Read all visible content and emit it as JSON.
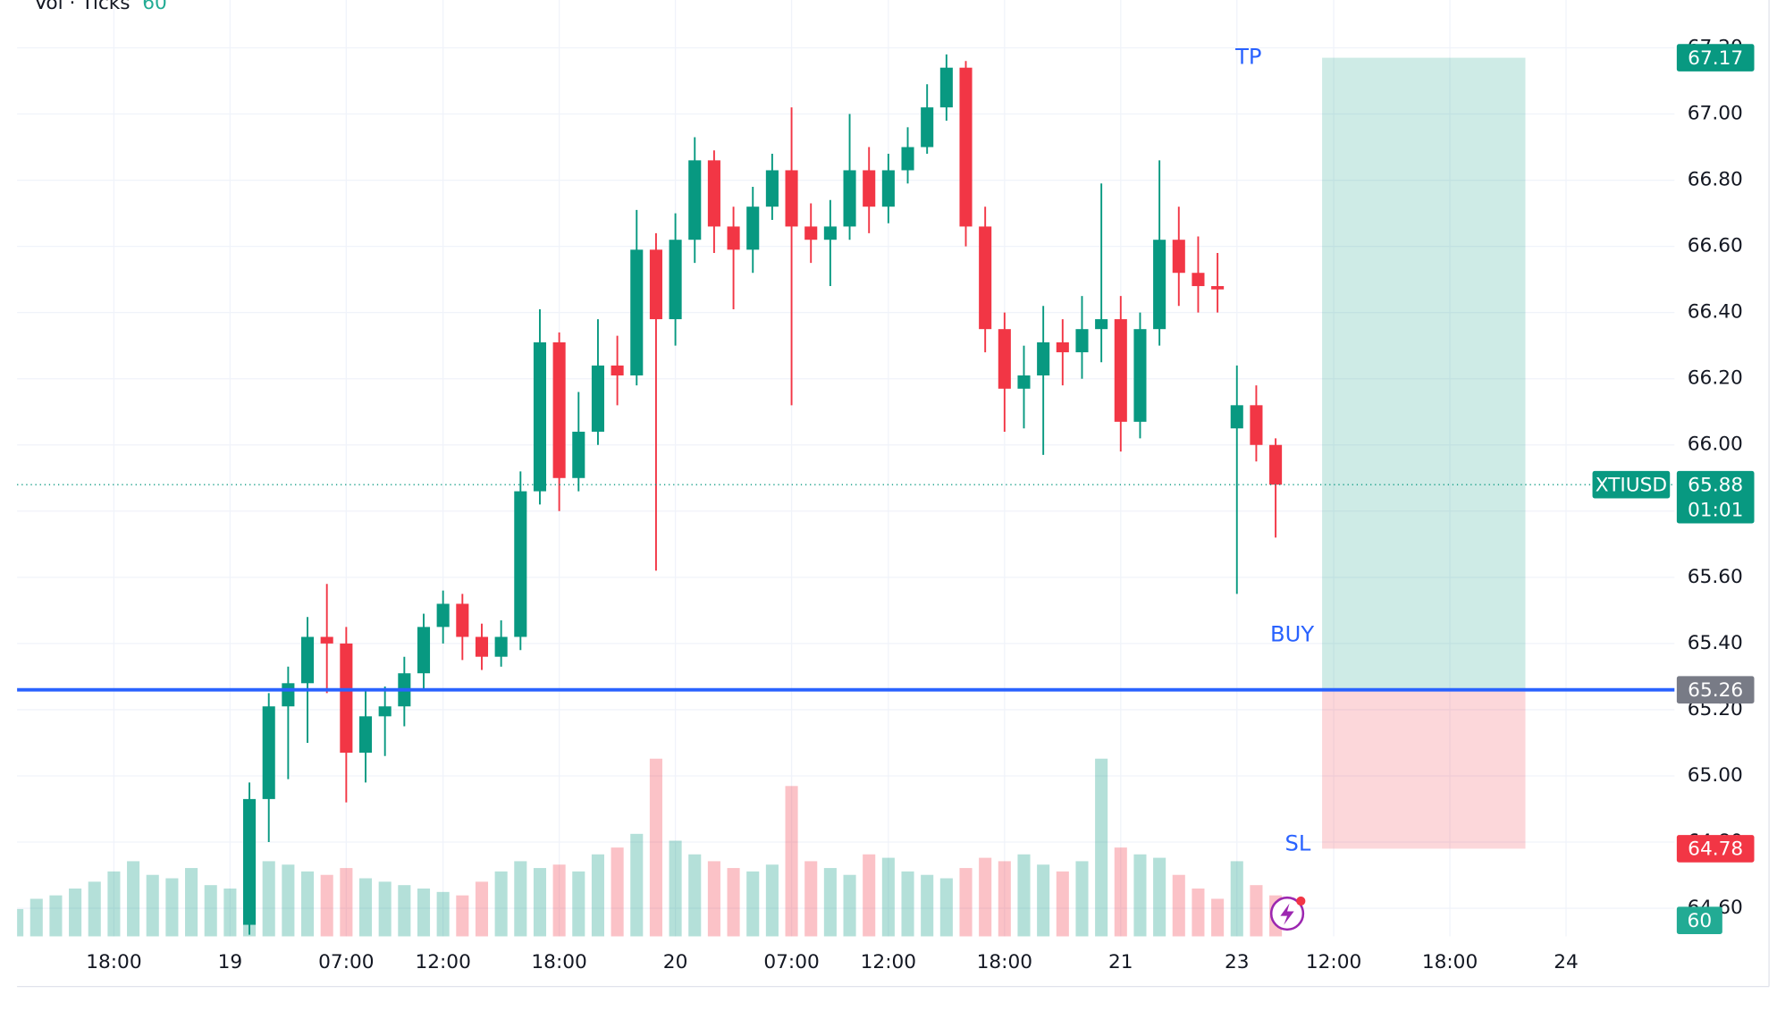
{
  "chart_data": {
    "type": "candlestick",
    "title": "Vol · Ticks",
    "symbol": "XTIUSD",
    "last_price": 65.88,
    "countdown": "01:01",
    "up_color": "#089981",
    "down_color": "#f23645",
    "grid": true,
    "x": [
      0,
      1,
      2,
      3,
      4,
      5,
      6,
      7,
      8,
      9,
      10,
      11,
      12,
      13,
      14,
      15,
      16,
      17,
      18,
      19,
      20,
      21,
      22,
      23,
      24,
      25,
      26,
      27,
      28,
      29,
      30,
      31,
      32,
      33,
      34,
      35,
      36,
      37,
      38,
      39,
      40,
      41,
      42,
      43,
      44,
      45,
      46,
      47,
      48,
      49,
      50,
      51,
      52,
      53,
      54,
      55,
      56,
      57,
      58,
      59,
      60,
      61,
      62,
      63,
      64,
      65
    ],
    "open": [
      null,
      null,
      null,
      null,
      null,
      null,
      null,
      null,
      null,
      null,
      null,
      null,
      64.55,
      64.93,
      65.21,
      65.28,
      65.42,
      65.4,
      65.07,
      65.18,
      65.21,
      65.31,
      65.45,
      65.52,
      65.42,
      65.36,
      65.42,
      65.86,
      66.31,
      65.9,
      66.04,
      66.24,
      66.21,
      66.59,
      66.38,
      66.62,
      66.86,
      66.66,
      66.59,
      66.72,
      66.83,
      66.66,
      66.62,
      66.66,
      66.83,
      66.72,
      66.83,
      66.9,
      67.02,
      67.14,
      66.66,
      66.35,
      66.17,
      66.21,
      66.31,
      66.28,
      66.35,
      66.38,
      66.07,
      66.35,
      66.62,
      66.52,
      66.48,
      66.05,
      66.12,
      66.0
    ],
    "high": [
      null,
      null,
      null,
      null,
      null,
      null,
      null,
      null,
      null,
      null,
      null,
      null,
      64.98,
      65.25,
      65.33,
      65.48,
      65.58,
      65.45,
      65.26,
      65.27,
      65.36,
      65.49,
      65.56,
      65.55,
      65.46,
      65.47,
      65.92,
      66.41,
      66.34,
      66.16,
      66.38,
      66.33,
      66.71,
      66.64,
      66.7,
      66.93,
      66.89,
      66.72,
      66.78,
      66.88,
      67.02,
      66.73,
      66.74,
      67.0,
      66.9,
      66.88,
      66.96,
      67.09,
      67.18,
      67.16,
      66.72,
      66.4,
      66.3,
      66.42,
      66.38,
      66.45,
      66.79,
      66.45,
      66.4,
      66.86,
      66.72,
      66.63,
      66.58,
      66.24,
      66.18,
      66.02
    ],
    "low": [
      null,
      null,
      null,
      null,
      null,
      null,
      null,
      null,
      null,
      null,
      null,
      null,
      64.52,
      64.8,
      64.99,
      65.1,
      65.25,
      64.92,
      64.98,
      65.06,
      65.15,
      65.26,
      65.4,
      65.35,
      65.32,
      65.33,
      65.38,
      65.82,
      65.8,
      65.86,
      66.0,
      66.12,
      66.18,
      65.62,
      66.3,
      66.55,
      66.58,
      66.41,
      66.52,
      66.68,
      66.12,
      66.55,
      66.48,
      66.62,
      66.64,
      66.67,
      66.79,
      66.88,
      66.98,
      66.6,
      66.28,
      66.04,
      66.05,
      65.97,
      66.18,
      66.2,
      66.25,
      65.98,
      66.02,
      66.3,
      66.42,
      66.4,
      66.4,
      65.55,
      65.95,
      65.72
    ],
    "close": [
      null,
      null,
      null,
      null,
      null,
      null,
      null,
      null,
      null,
      null,
      null,
      null,
      64.93,
      65.21,
      65.28,
      65.42,
      65.4,
      65.07,
      65.18,
      65.21,
      65.31,
      65.45,
      65.52,
      65.42,
      65.36,
      65.42,
      65.86,
      66.31,
      65.9,
      66.04,
      66.24,
      66.21,
      66.59,
      66.38,
      66.62,
      66.86,
      66.66,
      66.59,
      66.72,
      66.83,
      66.66,
      66.62,
      66.66,
      66.83,
      66.72,
      66.83,
      66.9,
      67.02,
      67.14,
      66.66,
      66.35,
      66.17,
      66.21,
      66.31,
      66.28,
      66.35,
      66.38,
      66.07,
      66.35,
      66.62,
      66.52,
      66.48,
      66.47,
      66.12,
      66.0,
      65.88
    ],
    "volume": [
      40,
      55,
      60,
      70,
      80,
      95,
      110,
      90,
      85,
      100,
      75,
      70,
      120,
      110,
      105,
      95,
      90,
      100,
      85,
      80,
      75,
      70,
      65,
      60,
      80,
      95,
      110,
      100,
      105,
      95,
      120,
      130,
      150,
      260,
      140,
      120,
      110,
      100,
      95,
      105,
      220,
      110,
      100,
      90,
      120,
      115,
      95,
      90,
      85,
      100,
      115,
      110,
      120,
      105,
      95,
      110,
      260,
      130,
      120,
      115,
      90,
      70,
      55,
      110,
      75,
      60
    ],
    "xlim": [
      0,
      85.6
    ],
    "xticks": [
      {
        "value": 5,
        "label": "18:00"
      },
      {
        "value": 11,
        "label": "19"
      },
      {
        "value": 17,
        "label": "07:00"
      },
      {
        "value": 22,
        "label": "12:00"
      },
      {
        "value": 28,
        "label": "18:00"
      },
      {
        "value": 34,
        "label": "20"
      },
      {
        "value": 40,
        "label": "07:00"
      },
      {
        "value": 45,
        "label": "12:00"
      },
      {
        "value": 51,
        "label": "18:00"
      },
      {
        "value": 57,
        "label": "21"
      },
      {
        "value": 63,
        "label": "23"
      },
      {
        "value": 68,
        "label": "12:00"
      },
      {
        "value": 74,
        "label": "18:00"
      },
      {
        "value": 80,
        "label": "24"
      }
    ],
    "ylim": [
      64.515,
      67.224
    ],
    "yticks": [
      {
        "value": 64.6,
        "label": "64.60"
      },
      {
        "value": 64.8,
        "label": "64.80"
      },
      {
        "value": 65,
        "label": "65.00"
      },
      {
        "value": 65.2,
        "label": "65.20"
      },
      {
        "value": 65.4,
        "label": "65.40"
      },
      {
        "value": 65.6,
        "label": "65.60"
      },
      {
        "value": 65.8,
        "label": "65.80"
      },
      {
        "value": 66,
        "label": "66.00"
      },
      {
        "value": 66.2,
        "label": "66.20"
      },
      {
        "value": 66.4,
        "label": "66.40"
      },
      {
        "value": 66.6,
        "label": "66.60"
      },
      {
        "value": 66.8,
        "label": "66.80"
      },
      {
        "value": 67,
        "label": "67.00"
      },
      {
        "value": 67.2,
        "label": "67.20"
      }
    ],
    "position": {
      "label": "BUY",
      "tp_label": "TP",
      "sl_label": "SL",
      "tp": 67.17,
      "entry": 65.26,
      "sl": 64.78,
      "x_start": 67.4,
      "x_end": 77.9,
      "line_color": "#2962ff"
    }
  }
}
